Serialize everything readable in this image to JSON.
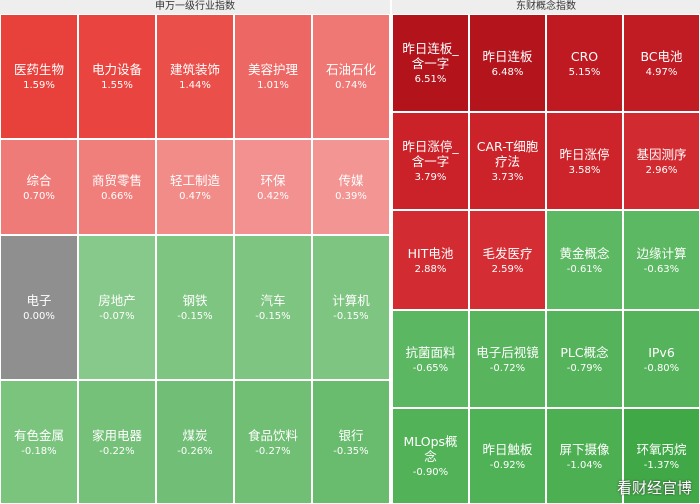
{
  "panels": [
    {
      "title": "申万一级行业指数",
      "cols": 5,
      "rows": [
        [
          {
            "name": "医药生物",
            "pct": "1.59%",
            "color": "#e8413c"
          },
          {
            "name": "电力设备",
            "pct": "1.55%",
            "color": "#e9443f"
          },
          {
            "name": "建筑装饰",
            "pct": "1.44%",
            "color": "#ea4f4a"
          },
          {
            "name": "美容护理",
            "pct": "1.01%",
            "color": "#ed6764"
          },
          {
            "name": "石油石化",
            "pct": "0.74%",
            "color": "#ef7774"
          }
        ],
        [
          {
            "name": "综合",
            "pct": "0.70%",
            "color": "#ef7b78"
          },
          {
            "name": "商贸零售",
            "pct": "0.66%",
            "color": "#f07f7c"
          },
          {
            "name": "轻工制造",
            "pct": "0.47%",
            "color": "#f28c89"
          },
          {
            "name": "环保",
            "pct": "0.42%",
            "color": "#f29190"
          },
          {
            "name": "传媒",
            "pct": "0.39%",
            "color": "#f39593"
          }
        ],
        [
          {
            "name": "电子",
            "pct": "0.00%",
            "color": "#8f8f8f"
          },
          {
            "name": "房地产",
            "pct": "-0.07%",
            "color": "#86c98a"
          },
          {
            "name": "钢铁",
            "pct": "-0.15%",
            "color": "#7ec582"
          },
          {
            "name": "汽车",
            "pct": "-0.15%",
            "color": "#7ec582"
          },
          {
            "name": "计算机",
            "pct": "-0.15%",
            "color": "#7ec582"
          }
        ],
        [
          {
            "name": "有色金属",
            "pct": "-0.18%",
            "color": "#7ac47e"
          },
          {
            "name": "家用电器",
            "pct": "-0.22%",
            "color": "#75c179"
          },
          {
            "name": "煤炭",
            "pct": "-0.26%",
            "color": "#71bf76"
          },
          {
            "name": "食品饮料",
            "pct": "-0.27%",
            "color": "#70bf75"
          },
          {
            "name": "银行",
            "pct": "-0.35%",
            "color": "#69bc6e"
          }
        ]
      ]
    },
    {
      "title": "东财概念指数",
      "cols": 4,
      "rows": [
        [
          {
            "name": "昨日连板_含一字",
            "pct": "6.51%",
            "color": "#b3141c"
          },
          {
            "name": "昨日连板",
            "pct": "6.48%",
            "color": "#b4151d"
          },
          {
            "name": "CRO",
            "pct": "5.15%",
            "color": "#bf1a22"
          },
          {
            "name": "BC电池",
            "pct": "4.97%",
            "color": "#c11b23"
          }
        ],
        [
          {
            "name": "昨日涨停_含一字",
            "pct": "3.79%",
            "color": "#cb2229"
          },
          {
            "name": "CAR-T细胞疗法",
            "pct": "3.73%",
            "color": "#cc2229"
          },
          {
            "name": "昨日涨停",
            "pct": "3.58%",
            "color": "#cd242b"
          },
          {
            "name": "基因测序",
            "pct": "2.96%",
            "color": "#d12a30"
          }
        ],
        [
          {
            "name": "HIT电池",
            "pct": "2.88%",
            "color": "#d22b31"
          },
          {
            "name": "毛发医疗",
            "pct": "2.59%",
            "color": "#d42e34"
          },
          {
            "name": "黄金概念",
            "pct": "-0.61%",
            "color": "#5db863"
          },
          {
            "name": "边缘计算",
            "pct": "-0.63%",
            "color": "#5cb862"
          }
        ],
        [
          {
            "name": "抗菌面料",
            "pct": "-0.65%",
            "color": "#5bb761"
          },
          {
            "name": "电子后视镜",
            "pct": "-0.72%",
            "color": "#58b55e"
          },
          {
            "name": "PLC概念",
            "pct": "-0.79%",
            "color": "#55b45b"
          },
          {
            "name": "IPv6",
            "pct": "-0.80%",
            "color": "#55b45b"
          }
        ],
        [
          {
            "name": "MLOps概念",
            "pct": "-0.90%",
            "color": "#51b257"
          },
          {
            "name": "昨日触板",
            "pct": "-0.92%",
            "color": "#50b256"
          },
          {
            "name": "屏下摄像",
            "pct": "-1.04%",
            "color": "#4caf52"
          },
          {
            "name": "环氧丙烷",
            "pct": "-1.37%",
            "color": "#41a847"
          }
        ]
      ]
    }
  ],
  "watermark": "看财经官博"
}
